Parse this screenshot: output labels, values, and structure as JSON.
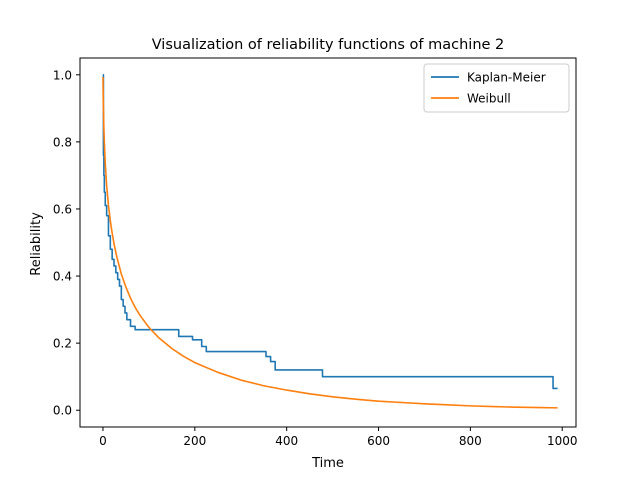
{
  "chart_data": {
    "type": "line",
    "title": "Visualization of reliability functions of machine 2",
    "xlabel": "Time",
    "ylabel": "Reliability",
    "xlim": [
      -50,
      1030
    ],
    "ylim": [
      -0.05,
      1.05
    ],
    "xticks": [
      0,
      200,
      400,
      600,
      800,
      1000
    ],
    "xtick_labels": [
      "0",
      "200",
      "400",
      "600",
      "800",
      "1000"
    ],
    "yticks": [
      0.0,
      0.2,
      0.4,
      0.6,
      0.8,
      1.0
    ],
    "ytick_labels": [
      "0.0",
      "0.2",
      "0.4",
      "0.6",
      "0.8",
      "1.0"
    ],
    "grid": false,
    "legend_position": "top-right",
    "series": [
      {
        "name": "Kaplan-Meier",
        "color": "#1f77b4",
        "step": true,
        "x": [
          0,
          1,
          2,
          3,
          5,
          8,
          12,
          16,
          20,
          24,
          28,
          32,
          36,
          40,
          44,
          48,
          52,
          56,
          60,
          70,
          80,
          165,
          195,
          215,
          225,
          355,
          365,
          375,
          478,
          980,
          990
        ],
        "y": [
          1.0,
          0.76,
          0.7,
          0.65,
          0.61,
          0.58,
          0.52,
          0.48,
          0.45,
          0.43,
          0.41,
          0.39,
          0.37,
          0.33,
          0.31,
          0.29,
          0.27,
          0.27,
          0.25,
          0.24,
          0.24,
          0.22,
          0.21,
          0.19,
          0.175,
          0.16,
          0.145,
          0.12,
          0.1,
          0.065,
          0.065
        ]
      },
      {
        "name": "Weibull",
        "color": "#ff7f0e",
        "step": false,
        "x": [
          0.05,
          0.2,
          0.5,
          1,
          2,
          3,
          5,
          8,
          12,
          16,
          20,
          25,
          30,
          40,
          50,
          60,
          70,
          80,
          100,
          120,
          150,
          175,
          200,
          250,
          300,
          350,
          400,
          450,
          500,
          550,
          600,
          650,
          700,
          750,
          800,
          850,
          900,
          950,
          990
        ],
        "y": [
          0.993,
          0.974,
          0.94,
          0.9,
          0.84,
          0.8,
          0.735,
          0.67,
          0.61,
          0.565,
          0.528,
          0.49,
          0.458,
          0.406,
          0.367,
          0.334,
          0.307,
          0.284,
          0.247,
          0.218,
          0.184,
          0.161,
          0.142,
          0.113,
          0.09,
          0.073,
          0.06,
          0.049,
          0.04,
          0.033,
          0.027,
          0.023,
          0.019,
          0.016,
          0.013,
          0.011,
          0.009,
          0.008,
          0.007
        ]
      }
    ]
  }
}
